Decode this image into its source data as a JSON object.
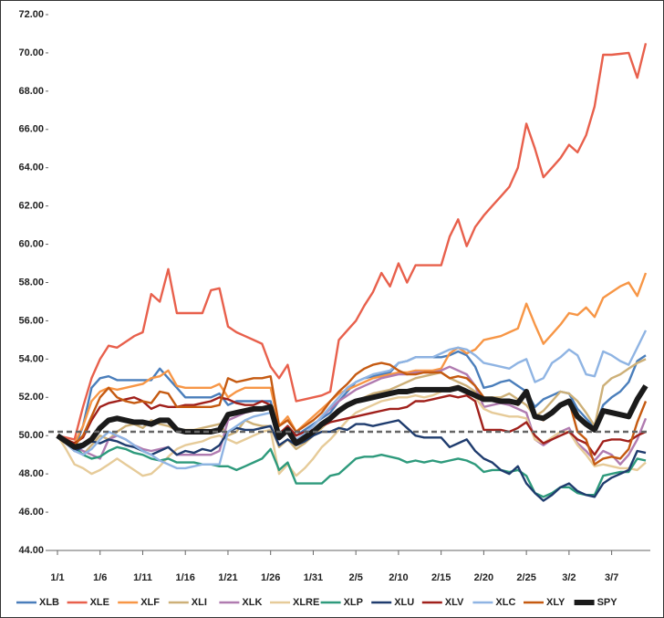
{
  "chart_data": {
    "type": "line",
    "categories": [
      "1/1",
      null,
      null,
      null,
      null,
      "1/6",
      null,
      null,
      null,
      null,
      "1/11",
      null,
      null,
      null,
      null,
      "1/16",
      null,
      null,
      null,
      null,
      "1/21",
      null,
      null,
      null,
      null,
      "1/26",
      null,
      null,
      null,
      null,
      "1/31",
      null,
      null,
      null,
      null,
      "2/5",
      null,
      null,
      null,
      null,
      "2/10",
      null,
      null,
      null,
      null,
      "2/15",
      null,
      null,
      null,
      null,
      "2/20",
      null,
      null,
      null,
      null,
      "2/25",
      null,
      null,
      null,
      null,
      "3/2",
      null,
      null,
      null,
      null,
      "3/7",
      null,
      null,
      null,
      null
    ],
    "ylim": [
      44,
      72
    ],
    "yticks": [
      {
        "value": 44,
        "label": "44.00"
      },
      {
        "value": 46,
        "label": "46.00"
      },
      {
        "value": 48,
        "label": "48.00"
      },
      {
        "value": 50,
        "label": "50.00"
      },
      {
        "value": 52,
        "label": "52.00"
      },
      {
        "value": 54,
        "label": "54.00"
      },
      {
        "value": 56,
        "label": "56.00"
      },
      {
        "value": 58,
        "label": "58.00"
      },
      {
        "value": 60,
        "label": "60.00"
      },
      {
        "value": 62,
        "label": "62.00"
      },
      {
        "value": 64,
        "label": "64.00"
      },
      {
        "value": 66,
        "label": "66.00"
      },
      {
        "value": 68,
        "label": "68.00"
      },
      {
        "value": 70,
        "label": "70.00"
      },
      {
        "value": 72,
        "label": "72.00"
      }
    ],
    "reference_line": 50.2,
    "legend": "bottom",
    "series": [
      {
        "name": "XLB",
        "color": "#4a7ebb",
        "values": [
          50,
          49.6,
          49.3,
          50.5,
          52.5,
          53.0,
          53.1,
          52.9,
          52.9,
          52.9,
          52.9,
          52.9,
          53.5,
          53.0,
          52.5,
          52.0,
          52.0,
          52.0,
          52.0,
          52.2,
          51.6,
          51.8,
          51.8,
          51.8,
          51.8,
          51.8,
          50.0,
          50.5,
          50.0,
          50.3,
          50.6,
          50.9,
          51.2,
          51.8,
          52.3,
          52.8,
          53.0,
          53.1,
          53.2,
          53.3,
          53.8,
          53.9,
          54.1,
          54.1,
          54.1,
          54.1,
          54.2,
          54.4,
          54.2,
          53.6,
          52.5,
          52.6,
          52.8,
          52.9,
          52.6,
          52.3,
          51.5,
          51.9,
          52.1,
          52.3,
          52.2,
          51.4,
          50.9,
          50.4,
          51.6,
          52.0,
          52.3,
          52.8,
          53.9,
          54.2
        ]
      },
      {
        "name": "XLE",
        "color": "#e8604c",
        "values": [
          50.0,
          49.9,
          49.8,
          51.5,
          53.0,
          54.0,
          54.7,
          54.6,
          54.9,
          55.2,
          55.4,
          57.4,
          57.0,
          58.7,
          56.4,
          56.4,
          56.4,
          56.4,
          57.6,
          57.7,
          55.7,
          55.4,
          55.2,
          55.0,
          54.8,
          53.6,
          53.0,
          53.7,
          51.8,
          51.9,
          52.0,
          52.1,
          52.3,
          55.0,
          55.5,
          56.0,
          56.8,
          57.5,
          58.5,
          57.8,
          59.0,
          58.0,
          58.9,
          58.9,
          58.9,
          58.9,
          60.4,
          61.3,
          59.9,
          60.9,
          61.5,
          62.0,
          62.5,
          63.0,
          64.0,
          66.3,
          65.0,
          63.5,
          64.0,
          64.5,
          65.2,
          64.8,
          65.7,
          67.2,
          69.9,
          69.9,
          69.95,
          70.0,
          68.7,
          70.5
        ]
      },
      {
        "name": "XLF",
        "color": "#f79646",
        "values": [
          50,
          49.8,
          49.6,
          50.5,
          51.8,
          52.3,
          52.5,
          52.4,
          52.5,
          52.6,
          52.7,
          53.0,
          53.1,
          53.4,
          52.6,
          52.5,
          52.5,
          52.5,
          52.5,
          52.7,
          52.0,
          52.3,
          52.5,
          52.5,
          52.5,
          52.5,
          50.5,
          51.0,
          50.2,
          50.6,
          51.0,
          51.4,
          51.8,
          52.2,
          52.4,
          52.6,
          52.8,
          53.0,
          53.1,
          53.2,
          53.3,
          53.3,
          53.4,
          53.4,
          53.4,
          53.5,
          54.3,
          54.6,
          54.3,
          54.5,
          55.0,
          55.1,
          55.2,
          55.4,
          55.6,
          56.9,
          55.8,
          54.8,
          55.3,
          55.8,
          56.4,
          56.3,
          56.7,
          56.2,
          57.2,
          57.5,
          57.8,
          58.0,
          57.3,
          58.5
        ]
      },
      {
        "name": "XLI",
        "color": "#cdb078",
        "values": [
          50,
          49.6,
          49.3,
          49.0,
          49.5,
          50.0,
          49.8,
          50.2,
          50.5,
          50.6,
          50.4,
          50.8,
          50.6,
          50.5,
          50.3,
          50.3,
          50.3,
          50.4,
          50.5,
          50.6,
          50.0,
          50.2,
          50.8,
          50.6,
          50.5,
          50.5,
          49.4,
          49.8,
          49.3,
          49.6,
          50.0,
          50.4,
          50.8,
          51.2,
          51.5,
          51.8,
          52.0,
          52.2,
          52.3,
          52.4,
          52.6,
          52.8,
          53.0,
          53.1,
          53.2,
          53.3,
          53.0,
          52.8,
          52.6,
          52.3,
          52.0,
          52.0,
          52.0,
          52.2,
          51.9,
          51.6,
          51.0,
          51.3,
          51.8,
          52.3,
          52.2,
          51.8,
          51.2,
          50.5,
          52.6,
          53.0,
          53.2,
          53.5,
          53.8,
          54.0
        ]
      },
      {
        "name": "XLK",
        "color": "#b07bb0",
        "values": [
          50,
          49.7,
          49.4,
          49.2,
          49.0,
          48.8,
          49.8,
          50.0,
          49.8,
          49.5,
          49.3,
          49.2,
          49.3,
          49.4,
          49.0,
          49.0,
          49.0,
          49.0,
          49.0,
          49.2,
          50.8,
          51.0,
          51.2,
          51.3,
          51.4,
          51.5,
          49.8,
          50.2,
          49.6,
          50.0,
          50.5,
          51.0,
          51.4,
          51.8,
          52.1,
          52.4,
          52.6,
          52.8,
          53.0,
          53.1,
          53.2,
          53.2,
          53.3,
          53.3,
          53.3,
          53.4,
          53.6,
          53.4,
          53.2,
          52.6,
          51.5,
          51.6,
          51.7,
          51.6,
          51.4,
          51.2,
          49.8,
          49.5,
          49.8,
          50.2,
          50.4,
          49.6,
          49.2,
          48.7,
          49.2,
          49.0,
          48.5,
          49.0,
          49.8,
          50.9
        ]
      },
      {
        "name": "XLRE",
        "color": "#e6cb99",
        "values": [
          50,
          49.3,
          48.5,
          48.3,
          48.0,
          48.2,
          48.5,
          48.8,
          48.5,
          48.2,
          47.9,
          48.0,
          48.4,
          48.9,
          49.3,
          49.5,
          49.6,
          49.7,
          49.9,
          50.0,
          49.8,
          49.6,
          49.8,
          50.0,
          50.2,
          50.3,
          48.0,
          48.5,
          47.9,
          48.3,
          48.8,
          49.4,
          49.8,
          50.3,
          50.8,
          51.2,
          51.4,
          51.6,
          51.8,
          51.9,
          52.0,
          52.0,
          52.1,
          52.0,
          52.1,
          52.3,
          52.5,
          52.6,
          52.4,
          52.0,
          51.4,
          51.2,
          51.1,
          51.0,
          51.0,
          50.9,
          49.8,
          49.6,
          49.9,
          50.2,
          50.2,
          49.5,
          49.0,
          48.4,
          48.5,
          48.4,
          48.3,
          48.3,
          48.2,
          48.6
        ]
      },
      {
        "name": "XLP",
        "color": "#2e9a7c",
        "values": [
          50,
          49.7,
          49.4,
          49.0,
          48.8,
          48.9,
          49.2,
          49.4,
          49.3,
          49.1,
          49.0,
          48.8,
          48.7,
          48.8,
          48.6,
          48.6,
          48.6,
          48.5,
          48.5,
          48.4,
          48.4,
          48.2,
          48.4,
          48.6,
          48.8,
          49.3,
          48.2,
          48.6,
          47.5,
          47.5,
          47.5,
          47.5,
          47.9,
          48.0,
          48.4,
          48.8,
          48.9,
          48.9,
          49.0,
          48.9,
          48.8,
          48.6,
          48.7,
          48.6,
          48.7,
          48.6,
          48.7,
          48.8,
          48.7,
          48.5,
          48.1,
          48.2,
          48.2,
          48.1,
          48.2,
          47.9,
          47.0,
          46.8,
          47.0,
          47.3,
          47.3,
          47.0,
          46.9,
          46.9,
          47.9,
          48.0,
          48.1,
          48.1,
          48.8,
          48.7
        ]
      },
      {
        "name": "XLU",
        "color": "#1f3c6e",
        "values": [
          50,
          49.6,
          49.2,
          49.4,
          49.7,
          49.6,
          49.8,
          49.7,
          49.5,
          49.4,
          49.2,
          49.0,
          49.2,
          49.4,
          49.0,
          49.2,
          49.1,
          49.3,
          49.2,
          49.5,
          50.2,
          50.4,
          50.3,
          50.3,
          50.4,
          50.5,
          49.5,
          49.8,
          49.5,
          49.7,
          50.0,
          50.2,
          50.2,
          50.4,
          50.3,
          50.6,
          50.6,
          50.5,
          50.6,
          50.7,
          50.8,
          50.4,
          50.0,
          49.9,
          49.9,
          49.9,
          49.4,
          49.6,
          49.8,
          49.2,
          48.8,
          48.6,
          48.2,
          48.0,
          48.4,
          47.5,
          47.0,
          46.6,
          46.9,
          47.3,
          47.5,
          47.1,
          46.9,
          46.8,
          47.5,
          47.8,
          48.0,
          48.2,
          49.2,
          49.1
        ]
      },
      {
        "name": "XLV",
        "color": "#a0201b",
        "values": [
          50,
          49.8,
          49.6,
          49.9,
          50.8,
          51.5,
          51.7,
          51.8,
          51.9,
          52.0,
          51.8,
          51.4,
          51.6,
          51.5,
          51.5,
          51.6,
          51.6,
          51.7,
          51.8,
          52.0,
          51.9,
          51.7,
          51.6,
          51.6,
          51.8,
          51.6,
          50.1,
          50.5,
          50.0,
          50.2,
          50.3,
          50.5,
          50.7,
          50.8,
          50.9,
          51.0,
          51.1,
          51.2,
          51.3,
          51.4,
          51.4,
          51.5,
          51.8,
          51.8,
          51.9,
          52.0,
          52.1,
          52.0,
          52.1,
          51.8,
          50.3,
          50.3,
          50.3,
          50.2,
          50.4,
          50.7,
          50.0,
          49.6,
          49.8,
          50.0,
          50.2,
          49.8,
          49.6,
          49.0,
          49.7,
          49.8,
          49.8,
          49.7,
          50.0,
          50.2
        ]
      },
      {
        "name": "XLC",
        "color": "#8fb4e3",
        "values": [
          50,
          49.6,
          49.2,
          49.0,
          49.3,
          49.8,
          50.2,
          50.0,
          49.8,
          49.5,
          49.2,
          49.0,
          48.7,
          48.5,
          48.3,
          48.3,
          48.4,
          48.5,
          48.5,
          48.5,
          50.2,
          50.5,
          50.8,
          51.0,
          51.1,
          51.2,
          50.0,
          50.2,
          49.8,
          50.1,
          50.5,
          51.0,
          51.5,
          52.0,
          52.5,
          52.8,
          53.0,
          53.2,
          53.3,
          53.4,
          53.8,
          53.9,
          54.1,
          54.1,
          54.1,
          54.3,
          54.5,
          54.6,
          54.5,
          54.2,
          53.8,
          53.7,
          53.6,
          53.5,
          53.8,
          54.0,
          52.8,
          53.0,
          53.8,
          54.1,
          54.5,
          54.2,
          53.2,
          53.1,
          54.4,
          54.2,
          53.9,
          53.7,
          54.6,
          55.5
        ]
      },
      {
        "name": "XLY",
        "color": "#c55a11",
        "values": [
          50,
          49.8,
          49.5,
          50.0,
          51.0,
          52.0,
          52.5,
          52.0,
          51.8,
          51.7,
          51.8,
          51.7,
          52.3,
          52.2,
          51.5,
          51.5,
          51.5,
          51.5,
          51.5,
          51.6,
          53.0,
          52.8,
          52.9,
          53.0,
          53.0,
          53.1,
          50.5,
          50.8,
          50.2,
          50.5,
          50.8,
          51.2,
          51.8,
          52.3,
          52.7,
          53.2,
          53.5,
          53.7,
          53.8,
          53.7,
          53.4,
          53.2,
          53.2,
          53.3,
          53.3,
          53.3,
          53.0,
          53.1,
          53.0,
          52.6,
          52.0,
          51.9,
          51.8,
          51.8,
          51.6,
          52.3,
          51.0,
          50.8,
          51.2,
          51.6,
          51.8,
          50.2,
          49.8,
          48.5,
          48.8,
          48.9,
          48.8,
          49.3,
          50.7,
          51.8
        ]
      },
      {
        "name": "SPY",
        "color": "#1a1a1a",
        "values": [
          50,
          49.7,
          49.4,
          49.5,
          49.8,
          50.4,
          50.8,
          50.9,
          50.8,
          50.7,
          50.7,
          50.6,
          50.8,
          50.8,
          50.3,
          50.2,
          50.2,
          50.2,
          50.2,
          50.3,
          51.1,
          51.2,
          51.3,
          51.4,
          51.4,
          51.5,
          49.9,
          50.3,
          49.6,
          49.9,
          50.2,
          50.6,
          50.9,
          51.3,
          51.6,
          51.8,
          51.9,
          52.0,
          52.1,
          52.2,
          52.3,
          52.3,
          52.4,
          52.4,
          52.4,
          52.4,
          52.4,
          52.5,
          52.3,
          52.1,
          51.9,
          51.9,
          51.8,
          51.8,
          51.7,
          52.3,
          51.0,
          50.9,
          51.2,
          51.6,
          51.8,
          51.0,
          50.6,
          50.3,
          51.3,
          51.2,
          51.1,
          51.0,
          51.9,
          52.6
        ]
      }
    ]
  }
}
